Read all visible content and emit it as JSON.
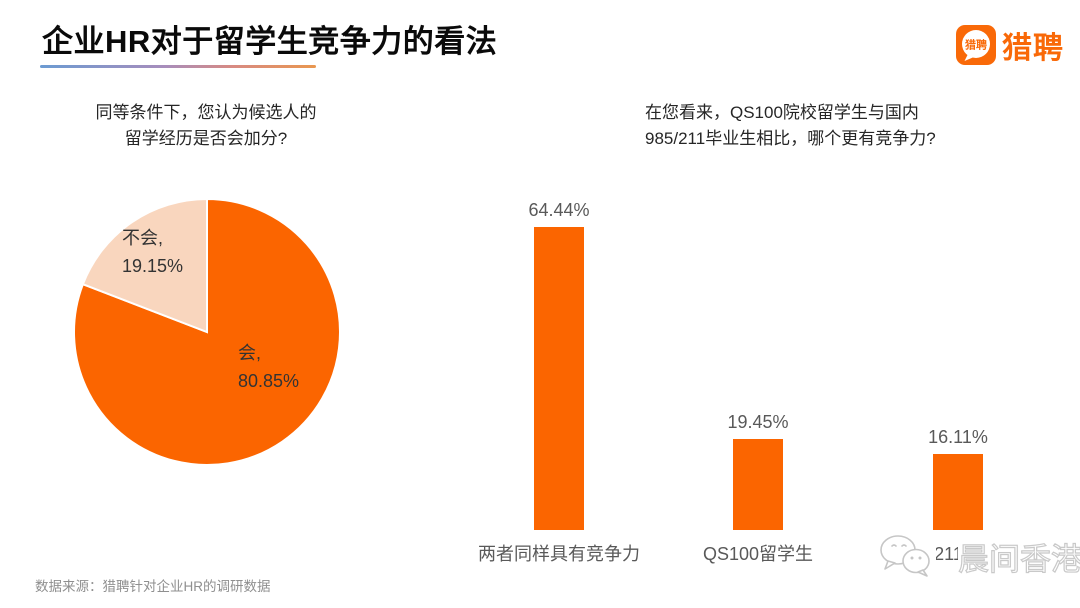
{
  "header": {
    "title": "企业HR对于留学生竞争力的看法",
    "brand": {
      "name": "猎聘",
      "icon_text": "猎聘"
    }
  },
  "colors": {
    "brand_orange": "#f96908",
    "chart_orange": "#fb6500",
    "pie_light": "#f9d6be",
    "underline_gradient": [
      "#6b9bd2",
      "#a78dbc",
      "#e9974f"
    ],
    "watermark_stroke": "#c9c9c9"
  },
  "chart_data": [
    {
      "type": "pie",
      "title": "同等条件下，您认为候选人的留学经历是否会加分?",
      "title_lines": [
        "同等条件下，您认为候选人的",
        "留学经历是否会加分?"
      ],
      "start_angle": "12-oclock",
      "direction": "clockwise",
      "legend": "none",
      "slices": [
        {
          "label": "会",
          "value": 80.85,
          "display_label": "会,",
          "display_value": "80.85%",
          "color": "#fb6500"
        },
        {
          "label": "不会",
          "value": 19.15,
          "display_label": "不会,",
          "display_value": "19.15%",
          "color": "#f9d6be"
        }
      ]
    },
    {
      "type": "bar",
      "title": "在您看来，QS100院校留学生与国内985/211毕业生相比，哪个更有竞争力?",
      "title_lines": [
        "在您看来，QS100院校留学生与国内",
        "985/211毕业生相比，哪个更有竞争力?"
      ],
      "categories": [
        "两者同样具有竞争力",
        "QS100留学生",
        "985/211毕业生"
      ],
      "values": [
        64.44,
        19.45,
        16.11
      ],
      "value_labels": [
        "64.44%",
        "19.45%",
        "16.11%"
      ],
      "bar_color": "#fb6500",
      "ylim": [
        0,
        70
      ],
      "grid": false,
      "axis": "hidden"
    }
  ],
  "watermark": {
    "text": "晨间香港"
  },
  "footer": {
    "source": "数据来源：猎聘针对企业HR的调研数据"
  }
}
